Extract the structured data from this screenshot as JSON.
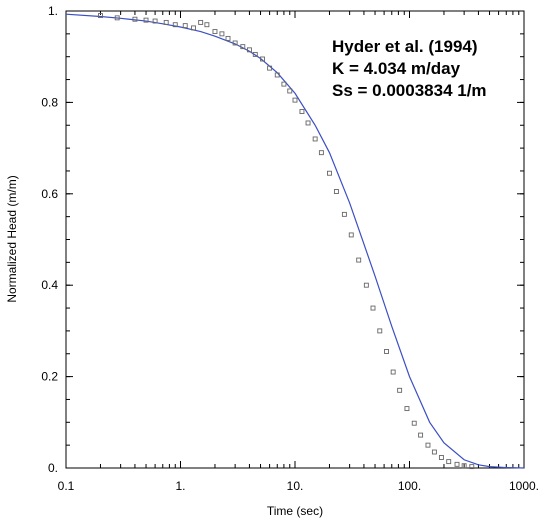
{
  "chart_data": {
    "type": "scatter",
    "title": "",
    "xlabel": "Time (sec)",
    "ylabel": "Normalized Head (m/m)",
    "xscale": "log",
    "xlim": [
      0.1,
      1000
    ],
    "ylim": [
      0,
      1
    ],
    "grid": false,
    "legend": "none",
    "x_tick_labels": [
      "0.1",
      "1.",
      "10.",
      "100.",
      "1000."
    ],
    "x_tick_values": [
      0.1,
      1,
      10,
      100,
      1000
    ],
    "y_tick_labels": [
      "0.",
      "0.2",
      "0.4",
      "0.6",
      "0.8",
      "1."
    ],
    "y_tick_values": [
      0,
      0.2,
      0.4,
      0.6,
      0.8,
      1.0
    ],
    "annotations": [
      "Hyder et al. (1994)",
      "K = 4.034 m/day",
      "Ss = 0.0003834 1/m"
    ],
    "series": [
      {
        "kind": "observed",
        "marker": "open-square",
        "color": "#666666",
        "x": [
          0.2,
          0.28,
          0.4,
          0.5,
          0.6,
          0.75,
          0.9,
          1.1,
          1.3,
          1.5,
          1.7,
          2.0,
          2.3,
          2.6,
          3.0,
          3.5,
          4.0,
          4.5,
          5.2,
          6.0,
          7.0,
          8.0,
          9.0,
          10.0,
          11.5,
          13,
          15,
          17,
          20,
          23,
          27,
          31,
          36,
          42,
          48,
          55,
          63,
          72,
          82,
          95,
          110,
          125,
          145,
          165,
          190,
          220,
          260,
          300,
          350
        ],
        "y": [
          0.99,
          0.985,
          0.982,
          0.98,
          0.978,
          0.975,
          0.97,
          0.968,
          0.963,
          0.975,
          0.97,
          0.955,
          0.95,
          0.94,
          0.93,
          0.922,
          0.915,
          0.905,
          0.895,
          0.875,
          0.86,
          0.84,
          0.825,
          0.805,
          0.78,
          0.755,
          0.72,
          0.69,
          0.645,
          0.605,
          0.555,
          0.51,
          0.455,
          0.4,
          0.35,
          0.3,
          0.255,
          0.21,
          0.17,
          0.13,
          0.098,
          0.072,
          0.05,
          0.035,
          0.023,
          0.014,
          0.008,
          0.005,
          0.003
        ]
      },
      {
        "kind": "fitted",
        "marker": "line",
        "color": "#3b4fc4",
        "x": [
          0.1,
          0.2,
          0.3,
          0.5,
          0.7,
          1.0,
          1.5,
          2.0,
          3.0,
          4.0,
          5.0,
          7.0,
          10,
          15,
          20,
          30,
          40,
          50,
          70,
          100,
          150,
          200,
          300,
          400,
          500,
          700,
          1000
        ],
        "y": [
          0.993,
          0.988,
          0.984,
          0.978,
          0.972,
          0.965,
          0.955,
          0.945,
          0.928,
          0.912,
          0.896,
          0.865,
          0.82,
          0.75,
          0.69,
          0.58,
          0.49,
          0.42,
          0.31,
          0.2,
          0.1,
          0.055,
          0.018,
          0.007,
          0.003,
          0.001,
          0.0
        ]
      }
    ]
  }
}
